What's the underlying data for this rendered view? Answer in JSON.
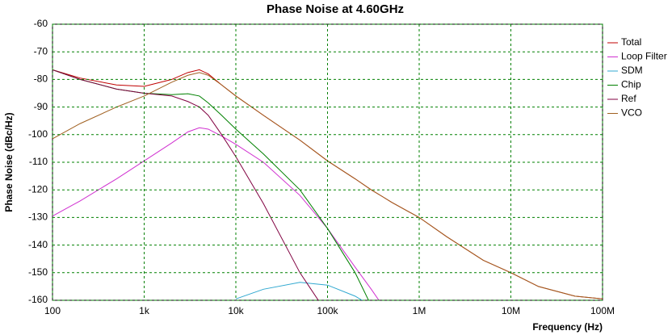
{
  "chart_data": {
    "type": "line",
    "title": "Phase Noise at 4.60GHz",
    "xlabel": "Frequency (Hz)",
    "ylabel": "Phase Noise (dBc/Hz)",
    "x": [
      100,
      200,
      500,
      1000,
      2000,
      3000,
      4000,
      5000,
      7000,
      10000,
      20000,
      50000,
      100000,
      200000,
      300000,
      400000,
      500000,
      1000000,
      2000000,
      5000000,
      10000000,
      20000000,
      50000000,
      100000000
    ],
    "xscale": "log",
    "grid": true,
    "legend": "right",
    "xlim": [
      100,
      100000000
    ],
    "xticks": [
      100,
      {
        "value": 1000,
        "label": "1k"
      },
      {
        "value": 10000,
        "label": "10k"
      },
      {
        "value": 100000,
        "label": "100k"
      },
      {
        "value": 1000000,
        "label": "1M"
      },
      {
        "value": 10000000,
        "label": "10M"
      },
      {
        "value": 100000000,
        "label": "100M"
      }
    ],
    "ylim": [
      -160,
      -60
    ],
    "yticks": [
      -60,
      -70,
      -80,
      -90,
      -100,
      -110,
      -120,
      -130,
      -140,
      -150,
      -160
    ],
    "series": [
      {
        "name": "Total",
        "color": "#c00000",
        "values": [
          -76.5,
          -79.5,
          -82,
          -82.5,
          -80,
          -77.5,
          -76.5,
          -78,
          -82,
          -86,
          -93,
          -102,
          -109.5,
          -116,
          -120,
          -122.5,
          -124.5,
          -130,
          -137,
          -145.5,
          -150,
          -155,
          -158.5,
          -159.5
        ]
      },
      {
        "name": "Loop Filter",
        "color": "#d030d0",
        "values": [
          -129.5,
          -124,
          -116,
          -109.5,
          -103,
          -99,
          -97.5,
          -98,
          -100.5,
          -103.5,
          -110,
          -122,
          -134,
          -148,
          -156,
          -162,
          null,
          null,
          null,
          null,
          null,
          null,
          null,
          null
        ]
      },
      {
        "name": "SDM",
        "color": "#30a8d0",
        "values": [
          null,
          null,
          null,
          null,
          null,
          null,
          null,
          null,
          null,
          -159.5,
          -156,
          -153.5,
          -154.5,
          -158.5,
          -162,
          null,
          null,
          null,
          null,
          null,
          null,
          null,
          null,
          null
        ]
      },
      {
        "name": "Chip",
        "color": "#008000",
        "values": [
          -76.5,
          -80,
          -83.5,
          -85,
          -85.5,
          -85.2,
          -86,
          -88.5,
          -93,
          -98,
          -107,
          -120,
          -134,
          -150,
          -162,
          null,
          null,
          null,
          null,
          null,
          null,
          null,
          null,
          null
        ]
      },
      {
        "name": "Ref",
        "color": "#800040",
        "values": [
          -76.5,
          -80,
          -83.5,
          -85,
          -86,
          -88,
          -90,
          -93,
          -100,
          -108,
          -125,
          -150,
          -165,
          null,
          null,
          null,
          null,
          null,
          null,
          null,
          null,
          null,
          null,
          null
        ]
      },
      {
        "name": "VCO",
        "color": "#a06020",
        "values": [
          -101.5,
          -96,
          -90,
          -86,
          -81,
          -78.5,
          -77.5,
          -78.5,
          -82,
          -86,
          -93,
          -102,
          -109.5,
          -116,
          -120,
          -122.5,
          -124.5,
          -130,
          -137,
          -145.5,
          -150,
          -155,
          -158.5,
          -159.5
        ]
      }
    ]
  }
}
